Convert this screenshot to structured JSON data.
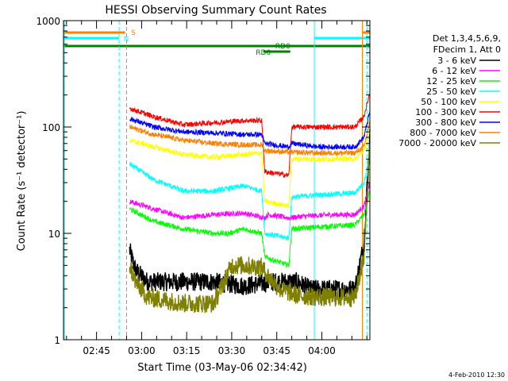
{
  "chart_data": {
    "type": "line",
    "title": "HESSI Observing Summary Count Rates",
    "xlabel": "Start Time (03-May-06 02:34:42)",
    "ylabel": "Count Rate (s⁻¹ detector⁻¹)",
    "ylog": true,
    "ylim": [
      1,
      1000
    ],
    "xlim_minutes_since_0234": [
      0,
      102
    ],
    "x_ticks": [
      "02:45",
      "03:00",
      "03:15",
      "03:30",
      "03:45",
      "04:00"
    ],
    "y_ticks": [
      "1",
      "10",
      "100",
      "1000"
    ],
    "legend_header": [
      "Det 1,3,4,5,6,9,",
      "FDecim 1, Att 0"
    ],
    "footer_date": "4-Feb-2010 12:30",
    "flags": [
      {
        "label": "S",
        "color": "#ff7f00"
      },
      {
        "label": "N",
        "color": "#00ffff"
      },
      {
        "label": "RD0",
        "color": "#008000"
      },
      {
        "label": "RD6",
        "color": "#008000"
      }
    ],
    "series": [
      {
        "name": "3 - 6 keV",
        "color": "#000000",
        "points": [
          [
            22,
            7
          ],
          [
            24,
            4.5
          ],
          [
            28,
            3.5
          ],
          [
            40,
            3.5
          ],
          [
            50,
            3.5
          ],
          [
            60,
            3.2
          ],
          [
            70,
            3.5
          ],
          [
            78,
            3.5
          ],
          [
            82,
            3
          ],
          [
            88,
            3
          ],
          [
            97,
            3
          ],
          [
            100,
            8
          ],
          [
            102,
            80
          ]
        ]
      },
      {
        "name": "6 - 12 keV",
        "color": "#ff00ff",
        "points": [
          [
            22,
            20
          ],
          [
            30,
            17
          ],
          [
            40,
            14
          ],
          [
            50,
            15
          ],
          [
            60,
            15.5
          ],
          [
            67,
            14
          ],
          [
            68,
            15
          ],
          [
            75,
            14
          ],
          [
            80,
            14.5
          ],
          [
            90,
            15
          ],
          [
            97,
            15
          ],
          [
            100,
            18
          ],
          [
            102,
            30
          ]
        ]
      },
      {
        "name": "12 - 25 keV",
        "color": "#00ff00",
        "points": [
          [
            22,
            17
          ],
          [
            30,
            13
          ],
          [
            40,
            11
          ],
          [
            50,
            10
          ],
          [
            55,
            10
          ],
          [
            60,
            11
          ],
          [
            66,
            10
          ],
          [
            67,
            6
          ],
          [
            75,
            5
          ],
          [
            76,
            11
          ],
          [
            85,
            11.5
          ],
          [
            97,
            12
          ],
          [
            100,
            15
          ],
          [
            102,
            25
          ]
        ]
      },
      {
        "name": "25 - 50 keV",
        "color": "#00ffff",
        "points": [
          [
            22,
            45
          ],
          [
            30,
            32
          ],
          [
            40,
            25
          ],
          [
            50,
            25
          ],
          [
            60,
            28
          ],
          [
            66,
            25
          ],
          [
            67,
            10
          ],
          [
            75,
            9
          ],
          [
            76,
            22
          ],
          [
            85,
            23
          ],
          [
            97,
            24
          ],
          [
            100,
            30
          ],
          [
            102,
            55
          ]
        ]
      },
      {
        "name": "50 - 100 keV",
        "color": "#ffff00",
        "points": [
          [
            22,
            75
          ],
          [
            30,
            65
          ],
          [
            40,
            55
          ],
          [
            50,
            52
          ],
          [
            60,
            55
          ],
          [
            66,
            57
          ],
          [
            67,
            20
          ],
          [
            75,
            18
          ],
          [
            76,
            50
          ],
          [
            85,
            50
          ],
          [
            97,
            50
          ],
          [
            100,
            60
          ],
          [
            102,
            90
          ]
        ]
      },
      {
        "name": "100 - 300 keV",
        "color": "#ff0000",
        "points": [
          [
            22,
            150
          ],
          [
            30,
            125
          ],
          [
            40,
            105
          ],
          [
            50,
            110
          ],
          [
            60,
            115
          ],
          [
            66,
            115
          ],
          [
            67,
            38
          ],
          [
            75,
            35
          ],
          [
            76,
            100
          ],
          [
            85,
            100
          ],
          [
            97,
            100
          ],
          [
            100,
            125
          ],
          [
            102,
            210
          ]
        ]
      },
      {
        "name": "300 - 800 keV",
        "color": "#0000ff",
        "points": [
          [
            22,
            120
          ],
          [
            30,
            100
          ],
          [
            40,
            90
          ],
          [
            50,
            88
          ],
          [
            60,
            85
          ],
          [
            66,
            85
          ],
          [
            67,
            70
          ],
          [
            75,
            65
          ],
          [
            76,
            70
          ],
          [
            85,
            65
          ],
          [
            97,
            65
          ],
          [
            100,
            80
          ],
          [
            102,
            140
          ]
        ]
      },
      {
        "name": "800 - 7000 keV",
        "color": "#ff7f00",
        "points": [
          [
            22,
            100
          ],
          [
            30,
            85
          ],
          [
            40,
            75
          ],
          [
            50,
            70
          ],
          [
            60,
            68
          ],
          [
            66,
            68
          ],
          [
            67,
            60
          ],
          [
            75,
            58
          ],
          [
            76,
            58
          ],
          [
            85,
            57
          ],
          [
            97,
            57
          ],
          [
            100,
            65
          ],
          [
            102,
            110
          ]
        ]
      },
      {
        "name": "7000 - 20000 keV",
        "color": "#808000",
        "points": [
          [
            22,
            5
          ],
          [
            24,
            3.5
          ],
          [
            28,
            2.5
          ],
          [
            40,
            2.2
          ],
          [
            50,
            2.2
          ],
          [
            56,
            5
          ],
          [
            60,
            5
          ],
          [
            66,
            4.8
          ],
          [
            68,
            4
          ],
          [
            72,
            3
          ],
          [
            78,
            2.6
          ],
          [
            88,
            2.5
          ],
          [
            97,
            2.5
          ],
          [
            100,
            6
          ],
          [
            102,
            70
          ]
        ]
      }
    ]
  }
}
